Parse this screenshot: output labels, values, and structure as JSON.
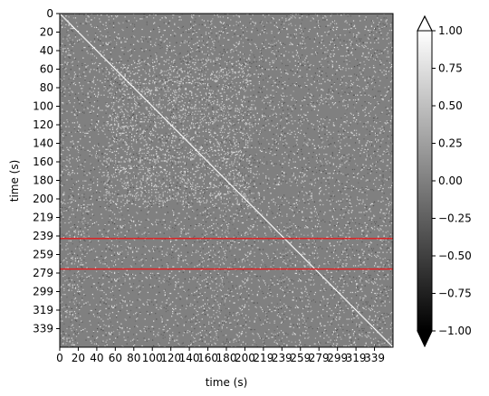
{
  "chart_data": {
    "type": "heatmap",
    "title": "",
    "xlabel": "time (s)",
    "ylabel": "time (s)",
    "x_tick_labels": [
      "0",
      "20",
      "40",
      "60",
      "80",
      "100",
      "120",
      "140",
      "160",
      "180",
      "200",
      "219",
      "239",
      "259",
      "279",
      "299",
      "319",
      "339"
    ],
    "y_tick_labels": [
      "0",
      "20",
      "40",
      "60",
      "80",
      "100",
      "120",
      "140",
      "160",
      "180",
      "200",
      "219",
      "239",
      "259",
      "279",
      "299",
      "319",
      "339"
    ],
    "xlim": [
      0,
      350
    ],
    "ylim": [
      0,
      350
    ],
    "y_inverted": true,
    "colormap": "gray",
    "colorbar": {
      "min": -1.0,
      "max": 1.0,
      "extend": "both",
      "ticks": [
        -1.0,
        -0.75,
        -0.5,
        -0.25,
        0.0,
        0.25,
        0.5,
        0.75,
        1.0
      ],
      "tick_labels": [
        "−1.00",
        "−0.75",
        "−0.50",
        "−0.25",
        "0.00",
        "0.25",
        "0.50",
        "0.75",
        "1.00"
      ]
    },
    "highlight_band": {
      "from": 236,
      "to": 268,
      "color": "#e41a1c"
    },
    "diagonal_value": 1.0,
    "background_value": 0.0
  }
}
